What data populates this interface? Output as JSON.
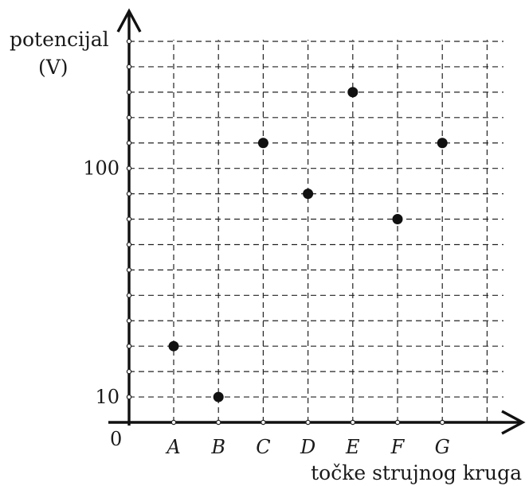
{
  "chart_data": {
    "type": "scatter",
    "ylabel_line1": "potencijal",
    "ylabel_line2": "(V)",
    "xlabel": "točke strujnog kruga",
    "origin_label": "0",
    "categories": [
      "A",
      "B",
      "C",
      "D",
      "E",
      "F",
      "G"
    ],
    "values": [
      30,
      10,
      110,
      90,
      130,
      80,
      110
    ],
    "y_ticks": [
      {
        "value": 10,
        "label": "10"
      },
      {
        "value": 100,
        "label": "100"
      }
    ],
    "ylim": [
      0,
      150
    ],
    "y_grid_step": 10,
    "grid": true,
    "grid_style": "dashed"
  }
}
